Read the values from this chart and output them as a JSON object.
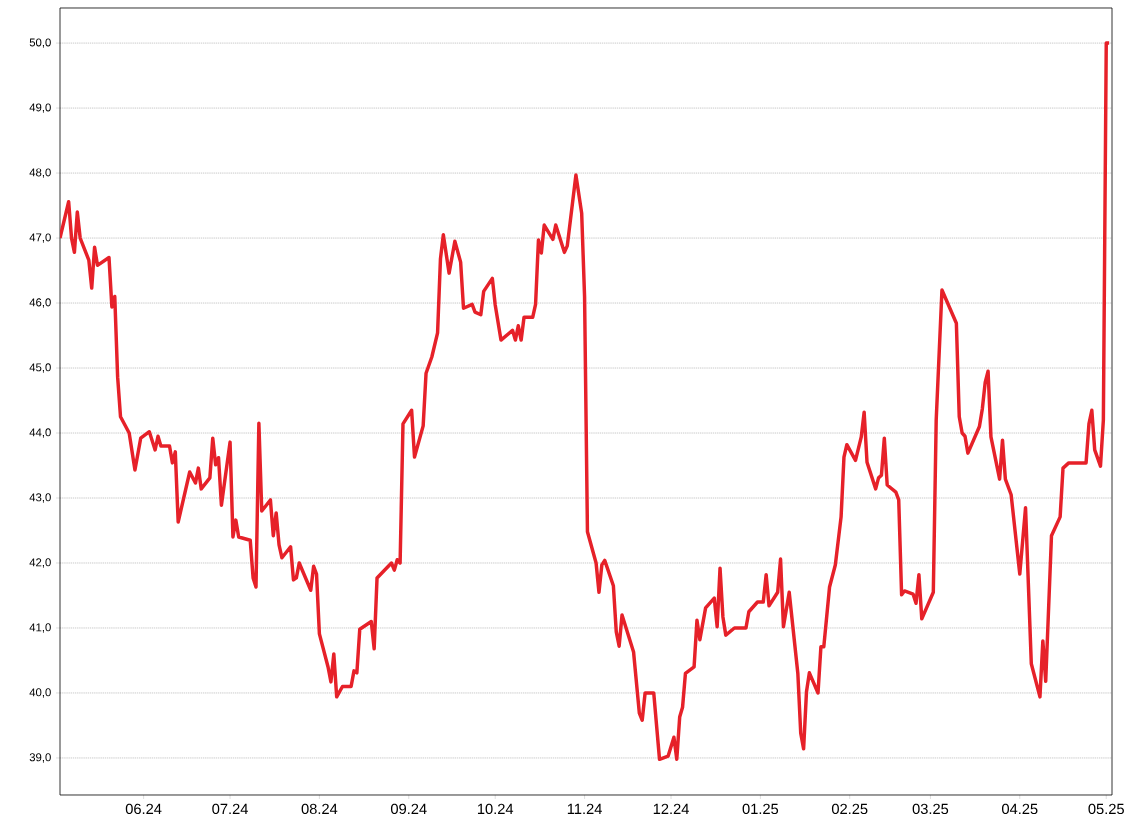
{
  "chart_data": {
    "type": "line",
    "x": [
      "2024-05-03",
      "2024-05-06",
      "2024-05-07",
      "2024-05-08",
      "2024-05-09",
      "2024-05-10",
      "2024-05-13",
      "2024-05-14",
      "2024-05-15",
      "2024-05-16",
      "2024-05-20",
      "2024-05-21",
      "2024-05-22",
      "2024-05-23",
      "2024-05-24",
      "2024-05-27",
      "2024-05-29",
      "2024-05-31",
      "2024-06-03",
      "2024-06-05",
      "2024-06-06",
      "2024-06-07",
      "2024-06-10",
      "2024-06-11",
      "2024-06-12",
      "2024-06-13",
      "2024-06-17",
      "2024-06-19",
      "2024-06-20",
      "2024-06-21",
      "2024-06-24",
      "2024-06-25",
      "2024-06-26",
      "2024-06-27",
      "2024-06-28",
      "2024-07-01",
      "2024-07-02",
      "2024-07-03",
      "2024-07-04",
      "2024-07-08",
      "2024-07-09",
      "2024-07-10",
      "2024-07-11",
      "2024-07-12",
      "2024-07-15",
      "2024-07-16",
      "2024-07-17",
      "2024-07-18",
      "2024-07-19",
      "2024-07-22",
      "2024-07-23",
      "2024-07-24",
      "2024-07-25",
      "2024-07-29",
      "2024-07-30",
      "2024-07-31",
      "2024-08-01",
      "2024-08-04",
      "2024-08-05",
      "2024-08-06",
      "2024-08-07",
      "2024-08-09",
      "2024-08-12",
      "2024-08-13",
      "2024-08-14",
      "2024-08-15",
      "2024-08-19",
      "2024-08-20",
      "2024-08-21",
      "2024-08-26",
      "2024-08-27",
      "2024-08-28",
      "2024-08-29",
      "2024-08-30",
      "2024-09-02",
      "2024-09-03",
      "2024-09-06",
      "2024-09-07",
      "2024-09-09",
      "2024-09-11",
      "2024-09-12",
      "2024-09-13",
      "2024-09-15",
      "2024-09-17",
      "2024-09-19",
      "2024-09-20",
      "2024-09-23",
      "2024-09-24",
      "2024-09-26",
      "2024-09-27",
      "2024-09-30",
      "2024-10-01",
      "2024-10-03",
      "2024-10-07",
      "2024-10-08",
      "2024-10-09",
      "2024-10-10",
      "2024-10-11",
      "2024-10-14",
      "2024-10-15",
      "2024-10-16",
      "2024-10-17",
      "2024-10-18",
      "2024-10-21",
      "2024-10-22",
      "2024-10-25",
      "2024-10-26",
      "2024-10-29",
      "2024-10-31",
      "2024-11-01",
      "2024-11-02",
      "2024-11-05",
      "2024-11-06",
      "2024-11-07",
      "2024-11-08",
      "2024-11-11",
      "2024-11-12",
      "2024-11-13",
      "2024-11-14",
      "2024-11-18",
      "2024-11-20",
      "2024-11-21",
      "2024-11-22",
      "2024-11-25",
      "2024-11-27",
      "2024-11-30",
      "2024-12-02",
      "2024-12-03",
      "2024-12-04",
      "2024-12-05",
      "2024-12-06",
      "2024-12-09",
      "2024-12-10",
      "2024-12-11",
      "2024-12-13",
      "2024-12-16",
      "2024-12-17",
      "2024-12-18",
      "2024-12-19",
      "2024-12-20",
      "2024-12-23",
      "2024-12-27",
      "2024-12-28",
      "2024-12-31",
      "2025-01-02",
      "2025-01-03",
      "2025-01-04",
      "2025-01-07",
      "2025-01-08",
      "2025-01-09",
      "2025-01-11",
      "2025-01-14",
      "2025-01-15",
      "2025-01-16",
      "2025-01-17",
      "2025-01-18",
      "2025-01-21",
      "2025-01-22",
      "2025-01-23",
      "2025-01-25",
      "2025-01-27",
      "2025-01-29",
      "2025-01-30",
      "2025-01-31",
      "2025-02-03",
      "2025-02-05",
      "2025-02-06",
      "2025-02-07",
      "2025-02-10",
      "2025-02-11",
      "2025-02-12",
      "2025-02-13",
      "2025-02-14",
      "2025-02-17",
      "2025-02-18",
      "2025-02-19",
      "2025-02-20",
      "2025-02-23",
      "2025-02-24",
      "2025-02-25",
      "2025-02-26",
      "2025-03-02",
      "2025-03-03",
      "2025-03-05",
      "2025-03-10",
      "2025-03-11",
      "2025-03-12",
      "2025-03-13",
      "2025-03-14",
      "2025-03-18",
      "2025-03-19",
      "2025-03-20",
      "2025-03-21",
      "2025-03-22",
      "2025-03-25",
      "2025-03-26",
      "2025-03-27",
      "2025-03-29",
      "2025-04-01",
      "2025-04-03",
      "2025-04-05",
      "2025-04-08",
      "2025-04-09",
      "2025-04-10",
      "2025-04-12",
      "2025-04-15",
      "2025-04-16",
      "2025-04-18",
      "2025-04-24",
      "2025-04-25",
      "2025-04-26",
      "2025-04-27",
      "2025-04-29",
      "2025-04-30",
      "2025-05-01",
      "2025-05-02"
    ],
    "series": [
      {
        "color": "#e62129",
        "values": [
          47.0,
          47.56,
          47.0,
          46.78,
          47.4,
          47.0,
          46.66,
          46.23,
          46.86,
          46.58,
          46.7,
          45.94,
          46.1,
          44.86,
          44.25,
          44.0,
          43.43,
          43.92,
          44.02,
          43.74,
          43.95,
          43.8,
          43.8,
          43.54,
          43.71,
          42.63,
          43.4,
          43.23,
          43.46,
          43.14,
          43.31,
          43.92,
          43.51,
          43.62,
          42.89,
          43.86,
          42.4,
          42.66,
          42.4,
          42.35,
          41.77,
          41.63,
          44.15,
          42.8,
          42.97,
          42.42,
          42.77,
          42.28,
          42.08,
          42.25,
          41.74,
          41.77,
          42.0,
          41.58,
          41.95,
          41.83,
          40.91,
          40.4,
          40.17,
          40.6,
          39.94,
          40.1,
          40.1,
          40.34,
          40.31,
          40.98,
          41.1,
          40.68,
          41.77,
          42.0,
          41.89,
          42.05,
          42.0,
          44.14,
          44.35,
          43.63,
          44.11,
          44.92,
          45.17,
          45.54,
          46.68,
          47.05,
          46.46,
          46.95,
          46.63,
          45.92,
          45.98,
          45.86,
          45.82,
          46.18,
          46.38,
          45.97,
          45.43,
          45.58,
          45.43,
          45.65,
          45.43,
          45.78,
          45.78,
          45.98,
          46.97,
          46.77,
          47.2,
          46.98,
          47.2,
          46.78,
          46.88,
          47.97,
          47.38,
          46.1,
          42.48,
          42.0,
          41.55,
          41.97,
          42.04,
          41.65,
          40.94,
          40.72,
          41.2,
          40.63,
          39.69,
          39.58,
          40.0,
          40.0,
          38.98,
          39.03,
          39.32,
          38.98,
          39.63,
          39.78,
          40.3,
          40.4,
          41.12,
          40.82,
          41.31,
          41.46,
          41.02,
          41.92,
          41.17,
          40.89,
          41.0,
          41.0,
          41.25,
          41.4,
          41.4,
          41.82,
          41.34,
          41.55,
          42.06,
          41.02,
          41.55,
          40.3,
          39.38,
          39.14,
          40.02,
          40.31,
          40.0,
          40.71,
          40.71,
          41.63,
          41.97,
          42.71,
          43.63,
          43.82,
          43.58,
          43.94,
          44.32,
          43.55,
          43.14,
          43.31,
          43.35,
          43.92,
          43.2,
          43.09,
          42.97,
          41.51,
          41.57,
          41.52,
          41.38,
          41.82,
          41.14,
          41.55,
          44.2,
          46.2,
          45.69,
          44.25,
          44.0,
          43.95,
          43.69,
          44.1,
          44.37,
          44.78,
          44.95,
          43.94,
          43.29,
          43.89,
          43.29,
          43.05,
          41.83,
          42.85,
          40.45,
          39.94,
          40.8,
          40.18,
          42.42,
          42.71,
          43.46,
          43.54,
          43.54,
          44.14,
          44.35,
          43.74,
          43.49,
          44.2,
          50.0,
          50.0
        ]
      }
    ],
    "xlim": [
      "2024-05-03",
      "2025-05-03"
    ],
    "xticks": [
      {
        "value": "2024-06-01",
        "label": "06.24"
      },
      {
        "value": "2024-07-01",
        "label": "07.24"
      },
      {
        "value": "2024-08-01",
        "label": "08.24"
      },
      {
        "value": "2024-09-01",
        "label": "09.24"
      },
      {
        "value": "2024-10-01",
        "label": "10.24"
      },
      {
        "value": "2024-11-01",
        "label": "11.24"
      },
      {
        "value": "2024-12-01",
        "label": "12.24"
      },
      {
        "value": "2025-01-01",
        "label": "01.25"
      },
      {
        "value": "2025-02-01",
        "label": "02.25"
      },
      {
        "value": "2025-03-01",
        "label": "03.25"
      },
      {
        "value": "2025-04-01",
        "label": "04.25"
      },
      {
        "value": "2025-05-01",
        "label": "05.25"
      }
    ],
    "ylim": [
      38.43,
      50.54
    ],
    "yticks": [
      {
        "value": 39,
        "label": "39,0"
      },
      {
        "value": 40,
        "label": "40,0"
      },
      {
        "value": 41,
        "label": "41,0"
      },
      {
        "value": 42,
        "label": "42,0"
      },
      {
        "value": 43,
        "label": "43,0"
      },
      {
        "value": 44,
        "label": "44,0"
      },
      {
        "value": 45,
        "label": "45,0"
      },
      {
        "value": 46,
        "label": "46,0"
      },
      {
        "value": 47,
        "label": "47,0"
      },
      {
        "value": 48,
        "label": "48,0"
      },
      {
        "value": 49,
        "label": "49,0"
      },
      {
        "value": 50,
        "label": "50,0"
      }
    ],
    "grid": "y"
  }
}
